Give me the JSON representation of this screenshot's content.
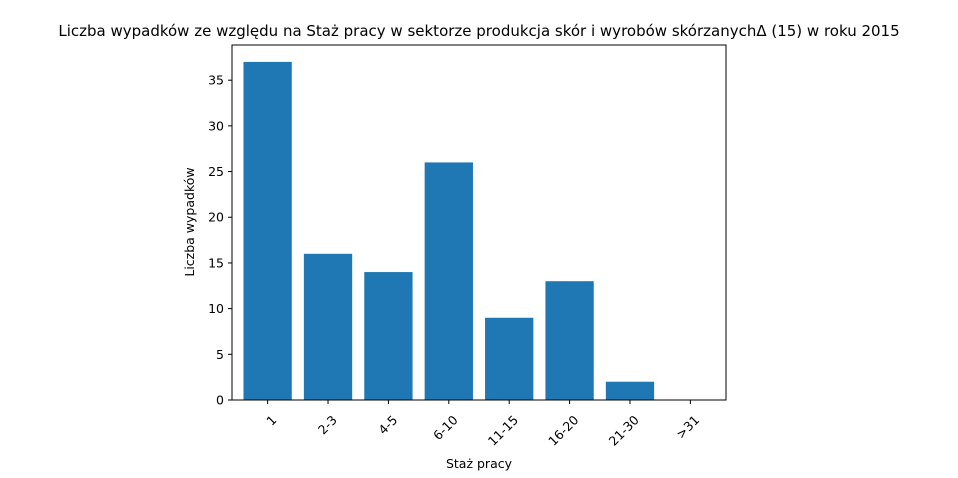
{
  "chart_data": {
    "type": "bar",
    "title": "Liczba wypadków ze względu na Staż pracy w sektorze produkcja skór i wyrobów skórzanychΔ (15) w roku 2015",
    "xlabel": "Staż pracy",
    "ylabel": "Liczba wypadków",
    "categories": [
      "1",
      "2-3",
      "4-5",
      "6-10",
      "11-15",
      "16-20",
      "21-30",
      ">31"
    ],
    "values": [
      37,
      16,
      14,
      26,
      9,
      13,
      2,
      0
    ],
    "ylim": [
      0,
      38.85
    ],
    "yticks": [
      0,
      5,
      10,
      15,
      20,
      25,
      30,
      35
    ],
    "bar_color": "#1f77b4",
    "grid": false,
    "x_tick_rotation": 45
  }
}
